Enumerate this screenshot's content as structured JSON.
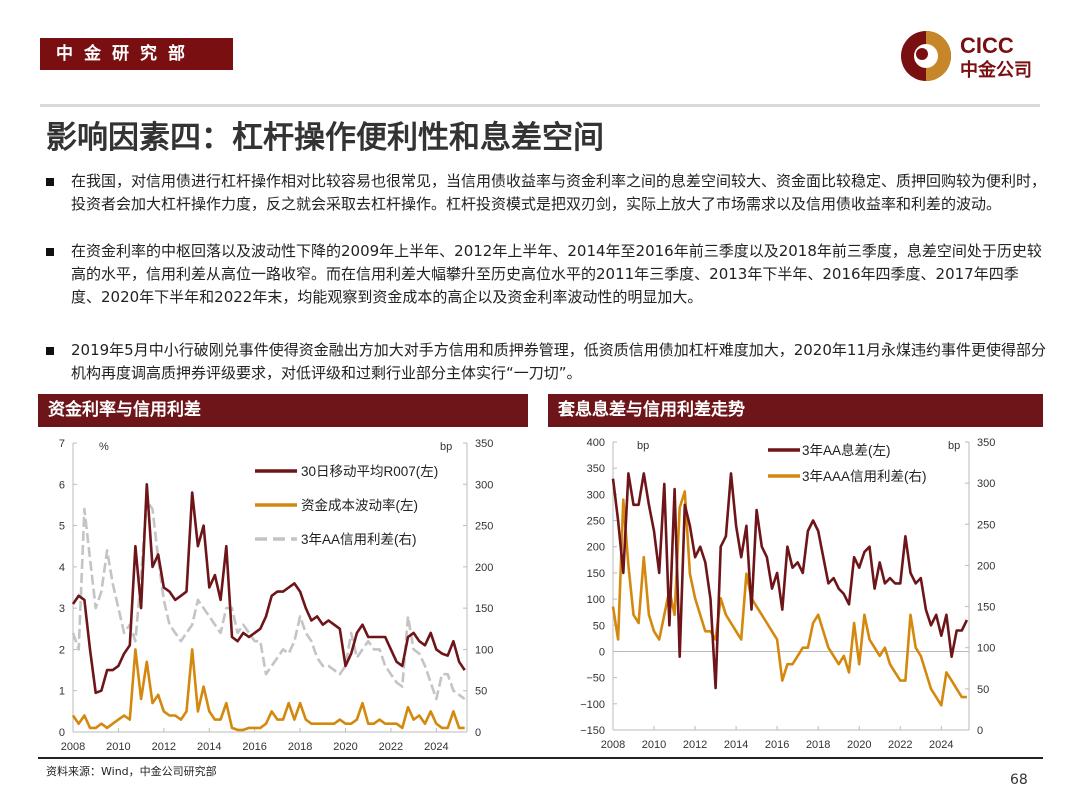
{
  "header": {
    "badge": "中金研究部",
    "logo_text": "CICC",
    "logo_sub": "中金公司",
    "brand_color": "#7a0f12",
    "accent_color": "#c8862a"
  },
  "title": "影响因素四：杠杆操作便利性和息差空间",
  "bullets": [
    "在我国，对信用债进行杠杆操作相对比较容易也很常见，当信用债收益率与资金利率之间的息差空间较大、资金面比较稳定、质押回购较为便利时，投资者会加大杠杆操作力度，反之就会采取去杠杆操作。杠杆投资模式是把双刃剑，实际上放大了市场需求以及信用债收益率和利差的波动。",
    "在资金利率的中枢回落以及波动性下降的2009年上半年、2012年上半年、2014年至2016年前三季度以及2018年前三季度，息差空间处于历史较高的水平，信用利差从高位一路收窄。而在信用利差大幅攀升至历史高位水平的2011年三季度、2013年下半年、2016年四季度、2017年四季度、2020年下半年和2022年末，均能观察到资金成本的高企以及资金利率波动性的明显加大。",
    "2019年5月中小行破刚兑事件使得资金融出方加大对手方信用和质押券管理，低资质信用债加杠杆难度加大，2020年11月永煤违约事件更使得部分机构再度调高质押券评级要求，对低评级和过剩行业部分主体实行“一刀切”。"
  ],
  "sections": [
    "资金利率与信用利差",
    "套息息差与信用利差走势"
  ],
  "footer": {
    "source": "资料来源：Wind，中金公司研究部",
    "page": "68"
  },
  "chart_data": [
    {
      "type": "line",
      "title": "资金利率与信用利差",
      "left_unit": "%",
      "right_unit": "bp",
      "ylim_left": [
        0,
        7
      ],
      "yticks_left": [
        "0",
        "1",
        "2",
        "3",
        "4",
        "5",
        "6",
        "7"
      ],
      "ylim_right": [
        0,
        350
      ],
      "yticks_right": [
        "0",
        "50",
        "100",
        "150",
        "200",
        "250",
        "300",
        "350"
      ],
      "xticks": [
        "2008",
        "2010",
        "2012",
        "2014",
        "2016",
        "2018",
        "2020",
        "2022",
        "2024"
      ],
      "xlim": [
        2008,
        2025.35
      ],
      "x_start": 2008,
      "x_step": 0.25,
      "legend_position": "top-right",
      "series": [
        {
          "name": "30日移动平均R007(左)",
          "axis": "left",
          "color": "#6e1519",
          "dash": false,
          "values": [
            3.1,
            3.3,
            3.2,
            2.0,
            0.95,
            1.0,
            1.5,
            1.5,
            1.6,
            1.9,
            2.1,
            4.5,
            3.0,
            6.0,
            4.0,
            4.3,
            3.5,
            3.4,
            3.2,
            3.3,
            3.4,
            5.8,
            4.5,
            5.0,
            3.5,
            3.8,
            3.2,
            4.5,
            2.3,
            2.2,
            2.4,
            2.3,
            2.4,
            2.5,
            2.8,
            3.3,
            3.4,
            3.4,
            3.5,
            3.6,
            3.4,
            3.0,
            2.7,
            2.8,
            2.6,
            2.7,
            2.6,
            2.5,
            1.6,
            1.9,
            2.4,
            2.6,
            2.3,
            2.3,
            2.3,
            2.3,
            2.0,
            1.7,
            1.6,
            2.3,
            2.4,
            2.2,
            2.1,
            2.4,
            2.0,
            1.9,
            1.85,
            2.2,
            1.7,
            1.5
          ]
        },
        {
          "name": "资金成本波动率(左)",
          "axis": "left",
          "color": "#d4880e",
          "dash": false,
          "values": [
            0.4,
            0.2,
            0.4,
            0.1,
            0.1,
            0.2,
            0.1,
            0.2,
            0.3,
            0.4,
            0.3,
            2.0,
            0.8,
            1.7,
            0.7,
            0.9,
            0.5,
            0.4,
            0.4,
            0.3,
            0.5,
            2.0,
            0.5,
            1.1,
            0.5,
            0.3,
            0.3,
            0.7,
            0.1,
            0.05,
            0.05,
            0.1,
            0.1,
            0.1,
            0.2,
            0.5,
            0.3,
            0.3,
            0.7,
            0.3,
            0.7,
            0.3,
            0.2,
            0.2,
            0.2,
            0.2,
            0.2,
            0.3,
            0.2,
            0.2,
            0.3,
            0.7,
            0.2,
            0.2,
            0.3,
            0.2,
            0.2,
            0.2,
            0.1,
            0.6,
            0.3,
            0.4,
            0.2,
            0.5,
            0.2,
            0.1,
            0.1,
            0.5,
            0.1,
            0.1
          ]
        },
        {
          "name": "3年AA信用利差(右)",
          "axis": "right",
          "color": "#c4c4c4",
          "dash": true,
          "values": [
            120,
            100,
            270,
            210,
            150,
            170,
            220,
            180,
            150,
            120,
            130,
            110,
            190,
            280,
            270,
            210,
            160,
            130,
            120,
            110,
            120,
            130,
            160,
            150,
            140,
            130,
            120,
            150,
            150,
            120,
            130,
            120,
            110,
            110,
            70,
            80,
            90,
            100,
            95,
            110,
            140,
            120,
            110,
            90,
            80,
            80,
            75,
            70,
            80,
            120,
            90,
            100,
            110,
            100,
            100,
            80,
            70,
            60,
            55,
            140,
            100,
            95,
            80,
            60,
            40,
            70,
            70,
            50,
            45,
            40
          ]
        }
      ]
    },
    {
      "type": "line",
      "title": "套息息差与信用利差走势",
      "left_unit": "bp",
      "right_unit": "bp",
      "ylim_left": [
        -150,
        400
      ],
      "yticks_left": [
        "−150",
        "−100",
        "−50",
        "0",
        "50",
        "100",
        "150",
        "200",
        "250",
        "300",
        "350",
        "400"
      ],
      "ylim_right": [
        0,
        350
      ],
      "yticks_right": [
        "0",
        "50",
        "100",
        "150",
        "200",
        "250",
        "300",
        "350"
      ],
      "xticks": [
        "2008",
        "2010",
        "2012",
        "2014",
        "2016",
        "2018",
        "2020",
        "2022",
        "2024"
      ],
      "xlim": [
        2008,
        2025.35
      ],
      "x_start": 2008,
      "x_step": 0.25,
      "legend_position": "top-right",
      "series": [
        {
          "name": "3年AA息差(左)",
          "axis": "left",
          "color": "#6e1519",
          "dash": false,
          "values": [
            330,
            250,
            150,
            340,
            280,
            280,
            340,
            280,
            230,
            150,
            320,
            50,
            310,
            -10,
            280,
            240,
            180,
            200,
            170,
            100,
            -70,
            200,
            220,
            340,
            240,
            180,
            240,
            80,
            270,
            200,
            180,
            120,
            150,
            80,
            200,
            160,
            170,
            150,
            230,
            250,
            230,
            180,
            130,
            140,
            120,
            110,
            90,
            180,
            160,
            190,
            200,
            120,
            170,
            130,
            140,
            130,
            130,
            220,
            150,
            130,
            140,
            80,
            50,
            70,
            30,
            70,
            -10,
            40,
            40,
            60
          ]
        },
        {
          "name": "3年AAA信用利差(右)",
          "axis": "right",
          "color": "#d4880e",
          "dash": false,
          "values": [
            150,
            110,
            280,
            200,
            140,
            130,
            210,
            140,
            120,
            110,
            140,
            170,
            140,
            270,
            290,
            190,
            160,
            140,
            120,
            120,
            110,
            160,
            140,
            130,
            120,
            110,
            190,
            160,
            150,
            140,
            130,
            120,
            110,
            60,
            80,
            80,
            90,
            100,
            100,
            130,
            140,
            120,
            100,
            90,
            80,
            90,
            70,
            130,
            80,
            140,
            110,
            100,
            90,
            100,
            80,
            70,
            60,
            60,
            140,
            100,
            90,
            70,
            50,
            40,
            30,
            70,
            60,
            50,
            40,
            40
          ]
        }
      ]
    }
  ]
}
